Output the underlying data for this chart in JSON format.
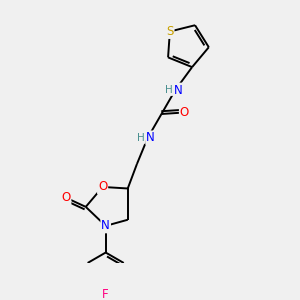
{
  "background_color": "#f0f0f0",
  "bond_color": "#000000",
  "atom_colors": {
    "S": "#c8a000",
    "N": "#0000ff",
    "O": "#ff0000",
    "F": "#ff0080",
    "C": "#000000",
    "H": "#4a9090"
  },
  "lw": 1.4,
  "fs": 8.5
}
